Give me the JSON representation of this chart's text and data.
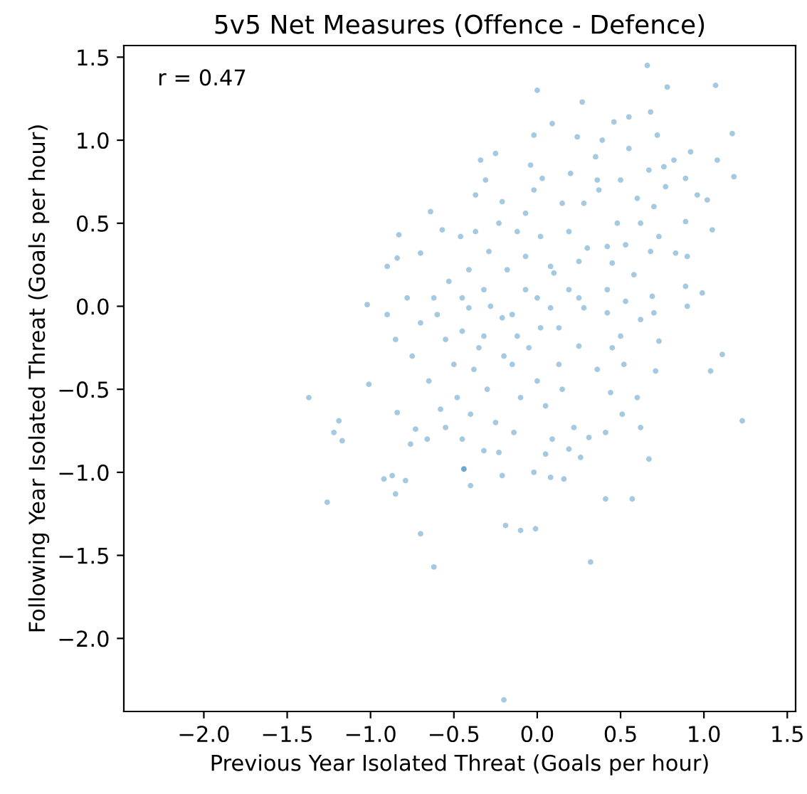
{
  "chart_data": {
    "type": "scatter",
    "title": "5v5 Net Measures (Offence - Defence)",
    "xlabel": "Previous Year Isolated Threat (Goals per hour)",
    "ylabel": "Following Year Isolated Threat (Goals per hour)",
    "annotations": [
      "r = 0.47"
    ],
    "xlim": [
      -2.48,
      1.55
    ],
    "ylim": [
      -2.44,
      1.57
    ],
    "xticks": [
      {
        "value": -2.0,
        "label": "−2.0"
      },
      {
        "value": -1.5,
        "label": "−1.5"
      },
      {
        "value": -1.0,
        "label": "−1.0"
      },
      {
        "value": -0.5,
        "label": "−0.5"
      },
      {
        "value": 0.0,
        "label": "0.0"
      },
      {
        "value": 0.5,
        "label": "0.5"
      },
      {
        "value": 1.0,
        "label": "1.0"
      },
      {
        "value": 1.5,
        "label": "1.5"
      }
    ],
    "yticks": [
      {
        "value": -2.0,
        "label": "−2.0"
      },
      {
        "value": -1.5,
        "label": "−1.5"
      },
      {
        "value": -1.0,
        "label": "−1.0"
      },
      {
        "value": -0.5,
        "label": "−0.5"
      },
      {
        "value": 0.0,
        "label": "0.0"
      },
      {
        "value": 0.5,
        "label": "0.5"
      },
      {
        "value": 1.0,
        "label": "1.0"
      },
      {
        "value": 1.5,
        "label": "1.5"
      }
    ],
    "grid": false,
    "marker": "circle",
    "series": [
      {
        "color": "#1f77b4",
        "x": [
          -0.64,
          -0.83,
          -0.84,
          -0.9,
          -0.7,
          -1.02,
          -0.57,
          -1.37,
          -1.01,
          -1.19,
          -1.22,
          -1.17,
          -0.84,
          -0.92,
          -0.87,
          -0.79,
          -0.85,
          -1.26,
          -0.7,
          -0.62,
          -0.73,
          -0.76,
          -0.66,
          -0.55,
          -0.44,
          1.23,
          0.67,
          0.57,
          0.41,
          -0.19,
          -0.1,
          -0.01,
          0.32,
          -0.2,
          0.16,
          0.08,
          -0.21,
          -0.4,
          -0.44,
          0.26,
          0.19,
          0.05,
          -0.02,
          0.62,
          0.51,
          0.6,
          0.44,
          1.04,
          0.71,
          0.41,
          0.31,
          0.22,
          0.09,
          -0.14,
          -0.23,
          -0.32,
          -0.45,
          0.66,
          0.0,
          0.27,
          0.78,
          1.07,
          1.17,
          1.18,
          1.08,
          1.05,
          0.99,
          0.9,
          1.11,
          0.09,
          -0.02,
          0.24,
          0.39,
          0.46,
          0.55,
          0.68,
          0.72,
          0.92,
          0.82,
          0.76,
          0.67,
          -0.34,
          -0.25,
          -0.31,
          -0.37,
          -0.04,
          0.03,
          0.36,
          0.5,
          0.77,
          0.89,
          0.96,
          1.02,
          0.89,
          0.83,
          0.9,
          0.89,
          0.68,
          0.69,
          0.58,
          0.73,
          0.62,
          0.48,
          0.37,
          0.28,
          0.15,
          -0.07,
          -0.21,
          -0.23,
          -0.37,
          -0.46,
          -0.12,
          0.02,
          0.19,
          0.42,
          0.53,
          -0.29,
          -0.07,
          0.08,
          0.25,
          0.45,
          -0.41,
          -0.18,
          -0.32,
          -0.07,
          0.19,
          0.42,
          0.53,
          0.28,
          0.08,
          -0.21,
          -0.41,
          0.42,
          0.7,
          0.62,
          0.02,
          0.13,
          -0.32,
          -0.12,
          0.25,
          0.5,
          0.73,
          -0.38,
          -0.15,
          0.13,
          0.36,
          0.52,
          -0.7,
          -0.62,
          -0.55,
          -0.5,
          -0.65,
          -0.58,
          -0.48,
          -0.75,
          -0.85,
          -0.9,
          -0.53,
          -0.6,
          -0.45,
          -0.4,
          -0.3,
          -0.25,
          -0.1,
          0.0,
          -0.35,
          -0.2,
          -0.05,
          0.05,
          -0.15,
          0.0,
          -0.28,
          0.1,
          0.3,
          -0.02,
          0.2,
          0.35,
          0.55,
          0.6,
          0.7,
          0.25,
          0.45,
          0.15,
          -0.45,
          -0.78
        ],
        "values": [
          0.57,
          0.43,
          0.29,
          0.24,
          0.32,
          0.01,
          0.46,
          -0.55,
          -0.47,
          -0.69,
          -0.76,
          -0.81,
          -0.64,
          -1.04,
          -1.02,
          -1.05,
          -1.13,
          -1.18,
          -1.37,
          -1.57,
          -0.74,
          -0.83,
          -0.8,
          -0.73,
          -0.98,
          -0.69,
          -0.92,
          -1.16,
          -1.16,
          -1.32,
          -1.35,
          -1.34,
          -1.54,
          -2.37,
          -1.04,
          -1.03,
          -1.02,
          -1.08,
          -0.98,
          -0.91,
          -0.86,
          -0.89,
          -1.0,
          -0.73,
          -0.65,
          -0.55,
          -0.52,
          -0.39,
          -0.39,
          -0.76,
          -0.79,
          -0.73,
          -0.8,
          -0.76,
          -0.88,
          -0.87,
          -0.8,
          1.45,
          1.3,
          1.23,
          1.32,
          1.33,
          1.04,
          0.78,
          0.88,
          0.46,
          0.08,
          0.0,
          -0.29,
          1.1,
          1.03,
          1.02,
          1.0,
          1.11,
          1.14,
          1.17,
          1.03,
          0.93,
          0.88,
          0.84,
          0.82,
          0.88,
          0.92,
          0.76,
          0.67,
          0.85,
          0.77,
          0.76,
          0.76,
          0.72,
          0.77,
          0.67,
          0.64,
          0.51,
          0.32,
          0.3,
          0.12,
          0.33,
          0.06,
          0.19,
          0.42,
          0.5,
          0.5,
          0.7,
          0.62,
          0.62,
          0.56,
          0.63,
          0.5,
          0.45,
          0.42,
          0.45,
          0.42,
          0.45,
          0.36,
          0.37,
          0.33,
          0.3,
          0.24,
          0.27,
          0.26,
          0.22,
          0.22,
          0.1,
          0.1,
          0.1,
          0.1,
          0.03,
          -0.01,
          -0.01,
          -0.07,
          -0.01,
          -0.04,
          -0.04,
          -0.08,
          -0.13,
          -0.13,
          -0.18,
          -0.18,
          -0.24,
          -0.18,
          -0.21,
          -0.38,
          -0.35,
          -0.35,
          -0.38,
          -0.35,
          -0.1,
          0.05,
          -0.2,
          -0.35,
          -0.45,
          -0.62,
          -0.55,
          -0.3,
          -0.2,
          -0.05,
          0.15,
          -0.05,
          -0.15,
          -0.65,
          -0.5,
          -0.7,
          -0.55,
          -0.45,
          -0.25,
          -0.3,
          -0.25,
          -0.6,
          -0.05,
          0.05,
          0.0,
          0.2,
          0.35,
          0.7,
          0.8,
          0.9,
          0.95,
          0.65,
          0.6,
          0.05,
          -0.25,
          -0.5,
          0.05,
          0.05
        ]
      }
    ]
  }
}
